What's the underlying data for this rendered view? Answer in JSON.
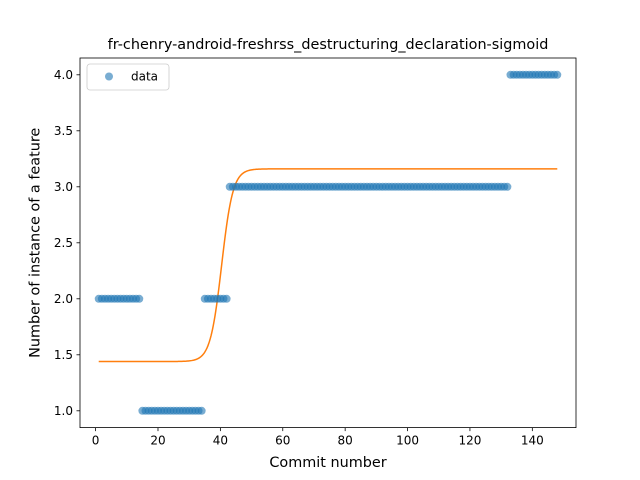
{
  "chart_data": {
    "type": "scatter",
    "title": "fr-chenry-android-freshrss_destructuring_declaration-sigmoid",
    "xlabel": "Commit number",
    "ylabel": "Number of instance of a feature",
    "xlim": [
      -5,
      154
    ],
    "ylim": [
      0.85,
      4.15
    ],
    "xticks": [
      0,
      20,
      40,
      60,
      80,
      100,
      120,
      140
    ],
    "yticks": [
      1.0,
      1.5,
      2.0,
      2.5,
      3.0,
      3.5,
      4.0
    ],
    "xtick_labels": [
      "0",
      "20",
      "40",
      "60",
      "80",
      "100",
      "120",
      "140"
    ],
    "ytick_labels": [
      "1.0",
      "1.5",
      "2.0",
      "2.5",
      "3.0",
      "3.5",
      "4.0"
    ],
    "legend": {
      "location": "upper-left",
      "entries": [
        "data"
      ]
    },
    "colors": {
      "data": "#1f77b4",
      "fit": "#ff7f0e"
    },
    "series": [
      {
        "name": "data",
        "kind": "scatter",
        "segments": [
          {
            "y": 2,
            "x_from": 1,
            "x_to": 14
          },
          {
            "y": 1,
            "x_from": 15,
            "x_to": 34
          },
          {
            "y": 2,
            "x_from": 35,
            "x_to": 42
          },
          {
            "y": 3,
            "x_from": 43,
            "x_to": 132
          },
          {
            "y": 4,
            "x_from": 133,
            "x_to": 148
          }
        ]
      },
      {
        "kind": "line",
        "fit": {
          "type": "sigmoid",
          "lower": 1.44,
          "upper": 3.16,
          "midpoint": 40.4,
          "rate": 0.55,
          "x_from": 1,
          "x_to": 148
        }
      }
    ]
  }
}
